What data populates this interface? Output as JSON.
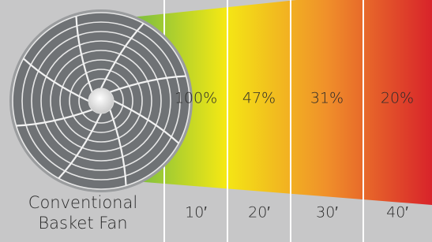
{
  "fan_label": [
    "Conventional",
    "Basket Fan"
  ],
  "zones": [
    {
      "percent": "100%",
      "distance": "10′"
    },
    {
      "percent": "47%",
      "distance": "20′"
    },
    {
      "percent": "31%",
      "distance": "30′"
    },
    {
      "percent": "20%",
      "distance": "40′"
    }
  ]
}
